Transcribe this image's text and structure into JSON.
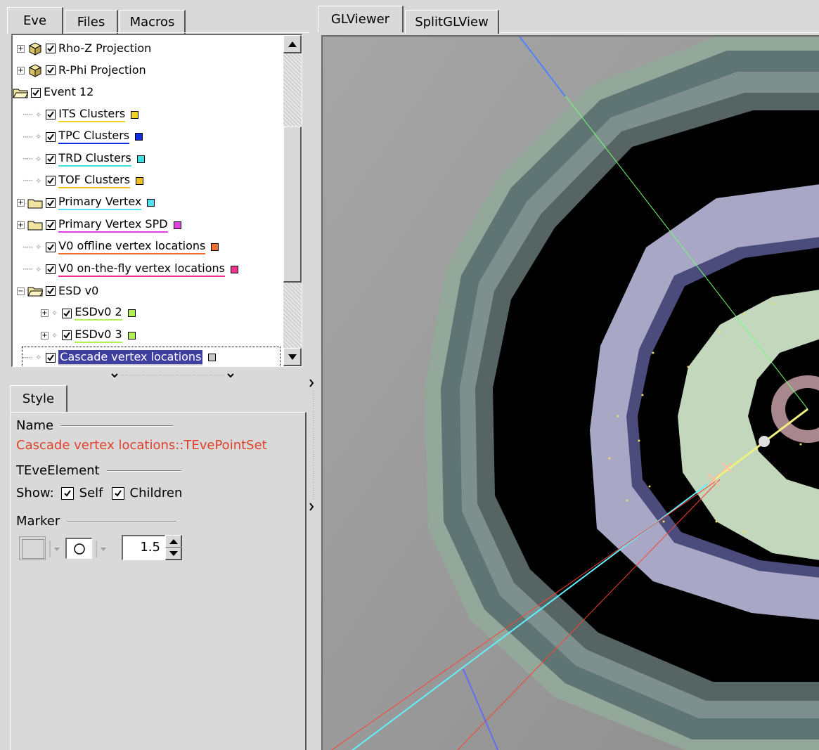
{
  "left_tabs": [
    "Eve",
    "Files",
    "Macros"
  ],
  "tree": {
    "items": [
      {
        "label": "Rho-Z Projection",
        "icon": "projection-icon",
        "expander": "+",
        "checked": true
      },
      {
        "label": "R-Phi Projection",
        "icon": "projection-icon",
        "expander": "+",
        "checked": true
      },
      {
        "label": "Event 12",
        "icon": "open-folder-icon",
        "checked": true
      },
      {
        "label": "ITS Clusters",
        "icon": "point-set-icon",
        "color": "#f0d020",
        "checked": true
      },
      {
        "label": "TPC Clusters",
        "icon": "point-set-icon",
        "color": "#1030e0",
        "checked": true
      },
      {
        "label": "TRD Clusters",
        "icon": "point-set-icon",
        "color": "#40e0e0",
        "checked": true
      },
      {
        "label": "TOF Clusters",
        "icon": "point-set-icon",
        "color": "#f0c020",
        "checked": true
      },
      {
        "label": "Primary Vertex",
        "icon": "folder-icon",
        "expander": "+",
        "color": "#50e0f0",
        "checked": true
      },
      {
        "label": "Primary Vertex SPD",
        "icon": "folder-icon",
        "expander": "+",
        "color": "#e040e0",
        "checked": true
      },
      {
        "label": "V0 offline vertex locations",
        "icon": "point-set-icon",
        "color": "#f07030",
        "checked": true
      },
      {
        "label": "V0 on-the-fly vertex locations",
        "icon": "point-set-icon",
        "color": "#f03090",
        "checked": true
      },
      {
        "label": "ESD v0",
        "icon": "open-folder-icon",
        "expander": "-",
        "checked": true
      },
      {
        "label": "ESDv0 2",
        "icon": "point-set-icon",
        "expander": "+",
        "color": "#b0f050",
        "checked": true
      },
      {
        "label": "ESDv0 3",
        "icon": "point-set-icon",
        "expander": "+",
        "color": "#b0f050",
        "checked": true
      },
      {
        "label": "Cascade vertex locations",
        "icon": "point-set-icon",
        "color": "#c8c8c8",
        "checked": true,
        "selected": true
      }
    ]
  },
  "style_panel": {
    "tab": "Style",
    "name_group": "Name",
    "name_value": "Cascade vertex locations::TEvePointSet",
    "element_group": "TEveElement",
    "show_label": "Show:",
    "self_label": "Self",
    "children_label": "Children",
    "marker_group": "Marker",
    "marker_size": "1.5",
    "marker_style": "O"
  },
  "viewer_tabs": [
    "GLViewer",
    "SplitGLView"
  ],
  "colors": {
    "selection": "#3f3f9f",
    "name_value": "#e0402a",
    "viewer_background": "#9a9a9a"
  }
}
